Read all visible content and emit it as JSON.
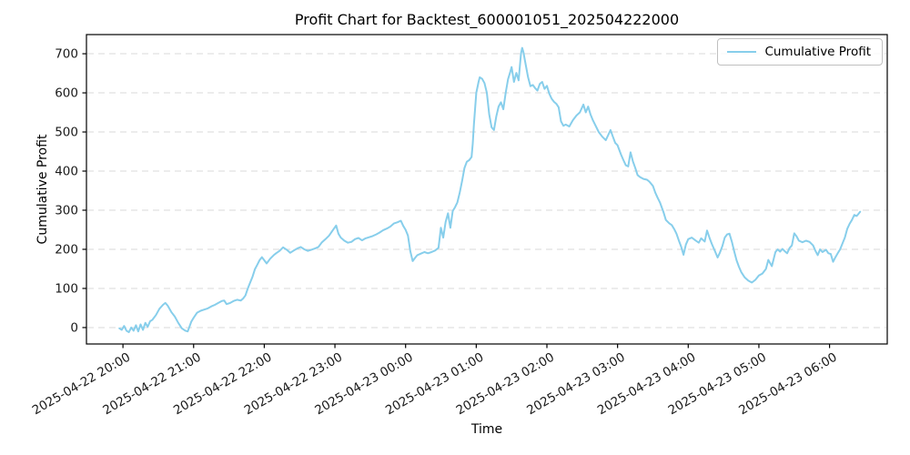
{
  "chart_data": {
    "type": "line",
    "title": "Profit Chart for Backtest_600001051_202504222000",
    "xlabel": "Time",
    "ylabel": "Cumulative Profit",
    "grid": {
      "axis": "y",
      "style": "dashed",
      "color": "#cccccc"
    },
    "legend": {
      "position": "upper right",
      "entries": [
        {
          "label": "Cumulative Profit",
          "color": "#87CEEB"
        }
      ]
    },
    "x_axis": {
      "label": "Time",
      "unit": "minutes since 2025-04-22 20:00",
      "domain_minutes": [
        -31,
        649
      ],
      "tick_minutes": [
        0,
        60,
        120,
        180,
        240,
        300,
        360,
        420,
        480,
        540,
        600
      ],
      "tick_labels": [
        "2025-04-22 20:00",
        "2025-04-22 21:00",
        "2025-04-22 22:00",
        "2025-04-22 23:00",
        "2025-04-23 00:00",
        "2025-04-23 01:00",
        "2025-04-23 02:00",
        "2025-04-23 03:00",
        "2025-04-23 04:00",
        "2025-04-23 05:00",
        "2025-04-23 06:00"
      ],
      "tick_rotation_deg": 30
    },
    "y_axis": {
      "label": "Cumulative Profit",
      "domain": [
        -42,
        749
      ],
      "ticks": [
        0,
        100,
        200,
        300,
        400,
        500,
        600,
        700
      ]
    },
    "series": [
      {
        "name": "Cumulative Profit",
        "color": "#87CEEB",
        "line_width": 2,
        "points": [
          [
            -3,
            -2
          ],
          [
            -1,
            -6
          ],
          [
            1,
            4
          ],
          [
            3,
            -8
          ],
          [
            5,
            -12
          ],
          [
            7,
            0
          ],
          [
            9,
            -8
          ],
          [
            11,
            6
          ],
          [
            13,
            -10
          ],
          [
            15,
            8
          ],
          [
            17,
            -6
          ],
          [
            19,
            12
          ],
          [
            21,
            2
          ],
          [
            23,
            16
          ],
          [
            25,
            20
          ],
          [
            28,
            32
          ],
          [
            31,
            48
          ],
          [
            34,
            58
          ],
          [
            36,
            63
          ],
          [
            38,
            56
          ],
          [
            41,
            40
          ],
          [
            44,
            28
          ],
          [
            47,
            12
          ],
          [
            50,
            -2
          ],
          [
            53,
            -8
          ],
          [
            55,
            -10
          ],
          [
            58,
            15
          ],
          [
            60,
            25
          ],
          [
            63,
            38
          ],
          [
            66,
            43
          ],
          [
            69,
            46
          ],
          [
            72,
            49
          ],
          [
            75,
            54
          ],
          [
            78,
            58
          ],
          [
            81,
            63
          ],
          [
            84,
            68
          ],
          [
            86,
            69
          ],
          [
            88,
            60
          ],
          [
            91,
            63
          ],
          [
            94,
            68
          ],
          [
            97,
            71
          ],
          [
            100,
            69
          ],
          [
            102,
            74
          ],
          [
            104,
            82
          ],
          [
            106,
            100
          ],
          [
            108,
            115
          ],
          [
            110,
            130
          ],
          [
            112,
            149
          ],
          [
            114,
            160
          ],
          [
            116,
            172
          ],
          [
            118,
            180
          ],
          [
            120,
            172
          ],
          [
            122,
            164
          ],
          [
            125,
            176
          ],
          [
            128,
            185
          ],
          [
            130,
            190
          ],
          [
            133,
            196
          ],
          [
            136,
            205
          ],
          [
            139,
            199
          ],
          [
            142,
            191
          ],
          [
            145,
            197
          ],
          [
            148,
            202
          ],
          [
            151,
            206
          ],
          [
            154,
            200
          ],
          [
            157,
            196
          ],
          [
            160,
            199
          ],
          [
            163,
            202
          ],
          [
            166,
            206
          ],
          [
            169,
            218
          ],
          [
            172,
            226
          ],
          [
            175,
            235
          ],
          [
            178,
            248
          ],
          [
            181,
            261
          ],
          [
            183,
            240
          ],
          [
            185,
            230
          ],
          [
            188,
            222
          ],
          [
            191,
            217
          ],
          [
            194,
            219
          ],
          [
            197,
            226
          ],
          [
            200,
            229
          ],
          [
            203,
            223
          ],
          [
            206,
            228
          ],
          [
            209,
            231
          ],
          [
            212,
            234
          ],
          [
            215,
            238
          ],
          [
            218,
            243
          ],
          [
            221,
            249
          ],
          [
            224,
            253
          ],
          [
            227,
            258
          ],
          [
            230,
            266
          ],
          [
            233,
            269
          ],
          [
            236,
            273
          ],
          [
            238,
            260
          ],
          [
            240,
            250
          ],
          [
            242,
            235
          ],
          [
            244,
            195
          ],
          [
            246,
            170
          ],
          [
            248,
            178
          ],
          [
            250,
            185
          ],
          [
            253,
            189
          ],
          [
            256,
            193
          ],
          [
            259,
            190
          ],
          [
            262,
            193
          ],
          [
            265,
            197
          ],
          [
            268,
            204
          ],
          [
            270,
            255
          ],
          [
            272,
            230
          ],
          [
            274,
            270
          ],
          [
            276,
            292
          ],
          [
            278,
            255
          ],
          [
            280,
            298
          ],
          [
            282,
            308
          ],
          [
            284,
            320
          ],
          [
            286,
            345
          ],
          [
            288,
            375
          ],
          [
            290,
            408
          ],
          [
            292,
            424
          ],
          [
            294,
            428
          ],
          [
            296,
            436
          ],
          [
            297,
            470
          ],
          [
            298,
            520
          ],
          [
            299,
            560
          ],
          [
            300,
            600
          ],
          [
            302,
            628
          ],
          [
            303,
            640
          ],
          [
            305,
            636
          ],
          [
            307,
            625
          ],
          [
            309,
            600
          ],
          [
            311,
            545
          ],
          [
            313,
            512
          ],
          [
            315,
            505
          ],
          [
            317,
            540
          ],
          [
            319,
            565
          ],
          [
            321,
            576
          ],
          [
            323,
            558
          ],
          [
            325,
            600
          ],
          [
            327,
            635
          ],
          [
            329,
            655
          ],
          [
            330,
            666
          ],
          [
            332,
            628
          ],
          [
            334,
            651
          ],
          [
            336,
            632
          ],
          [
            338,
            700
          ],
          [
            339,
            715
          ],
          [
            340,
            705
          ],
          [
            342,
            672
          ],
          [
            344,
            640
          ],
          [
            346,
            617
          ],
          [
            348,
            620
          ],
          [
            350,
            612
          ],
          [
            352,
            606
          ],
          [
            354,
            623
          ],
          [
            356,
            628
          ],
          [
            358,
            610
          ],
          [
            360,
            618
          ],
          [
            362,
            598
          ],
          [
            364,
            585
          ],
          [
            366,
            577
          ],
          [
            368,
            572
          ],
          [
            370,
            563
          ],
          [
            372,
            527
          ],
          [
            374,
            516
          ],
          [
            376,
            519
          ],
          [
            379,
            514
          ],
          [
            382,
            530
          ],
          [
            385,
            542
          ],
          [
            388,
            550
          ],
          [
            391,
            570
          ],
          [
            393,
            550
          ],
          [
            395,
            565
          ],
          [
            397,
            545
          ],
          [
            399,
            530
          ],
          [
            401,
            518
          ],
          [
            404,
            500
          ],
          [
            407,
            488
          ],
          [
            410,
            479
          ],
          [
            412,
            492
          ],
          [
            414,
            505
          ],
          [
            416,
            488
          ],
          [
            418,
            472
          ],
          [
            420,
            466
          ],
          [
            423,
            442
          ],
          [
            425,
            428
          ],
          [
            427,
            415
          ],
          [
            429,
            412
          ],
          [
            431,
            448
          ],
          [
            433,
            425
          ],
          [
            435,
            408
          ],
          [
            437,
            390
          ],
          [
            439,
            385
          ],
          [
            442,
            380
          ],
          [
            445,
            378
          ],
          [
            447,
            373
          ],
          [
            450,
            362
          ],
          [
            452,
            345
          ],
          [
            454,
            332
          ],
          [
            456,
            320
          ],
          [
            459,
            295
          ],
          [
            461,
            275
          ],
          [
            464,
            266
          ],
          [
            466,
            262
          ],
          [
            468,
            252
          ],
          [
            470,
            240
          ],
          [
            472,
            223
          ],
          [
            474,
            207
          ],
          [
            476,
            186
          ],
          [
            478,
            212
          ],
          [
            480,
            226
          ],
          [
            483,
            230
          ],
          [
            486,
            223
          ],
          [
            489,
            217
          ],
          [
            491,
            228
          ],
          [
            494,
            220
          ],
          [
            496,
            248
          ],
          [
            498,
            230
          ],
          [
            500,
            214
          ],
          [
            503,
            193
          ],
          [
            505,
            179
          ],
          [
            507,
            192
          ],
          [
            509,
            208
          ],
          [
            511,
            230
          ],
          [
            513,
            238
          ],
          [
            515,
            240
          ],
          [
            517,
            220
          ],
          [
            519,
            195
          ],
          [
            521,
            172
          ],
          [
            523,
            156
          ],
          [
            525,
            142
          ],
          [
            528,
            128
          ],
          [
            531,
            120
          ],
          [
            534,
            115
          ],
          [
            537,
            122
          ],
          [
            540,
            133
          ],
          [
            543,
            138
          ],
          [
            546,
            150
          ],
          [
            548,
            173
          ],
          [
            551,
            157
          ],
          [
            554,
            193
          ],
          [
            556,
            200
          ],
          [
            558,
            194
          ],
          [
            560,
            201
          ],
          [
            562,
            195
          ],
          [
            564,
            190
          ],
          [
            566,
            203
          ],
          [
            568,
            210
          ],
          [
            570,
            241
          ],
          [
            572,
            233
          ],
          [
            574,
            222
          ],
          [
            577,
            218
          ],
          [
            580,
            222
          ],
          [
            583,
            219
          ],
          [
            586,
            210
          ],
          [
            588,
            196
          ],
          [
            590,
            185
          ],
          [
            592,
            200
          ],
          [
            594,
            193
          ],
          [
            597,
            199
          ],
          [
            599,
            190
          ],
          [
            601,
            188
          ],
          [
            603,
            168
          ],
          [
            605,
            180
          ],
          [
            607,
            190
          ],
          [
            609,
            200
          ],
          [
            611,
            215
          ],
          [
            613,
            230
          ],
          [
            615,
            252
          ],
          [
            617,
            265
          ],
          [
            619,
            275
          ],
          [
            621,
            288
          ],
          [
            623,
            285
          ],
          [
            625,
            292
          ],
          [
            626,
            296
          ]
        ]
      }
    ],
    "colors": {
      "line": "#87CEEB",
      "grid": "#cccccc",
      "axis": "#000000",
      "tick_label": "#1a1a1a",
      "background": "#ffffff"
    }
  }
}
